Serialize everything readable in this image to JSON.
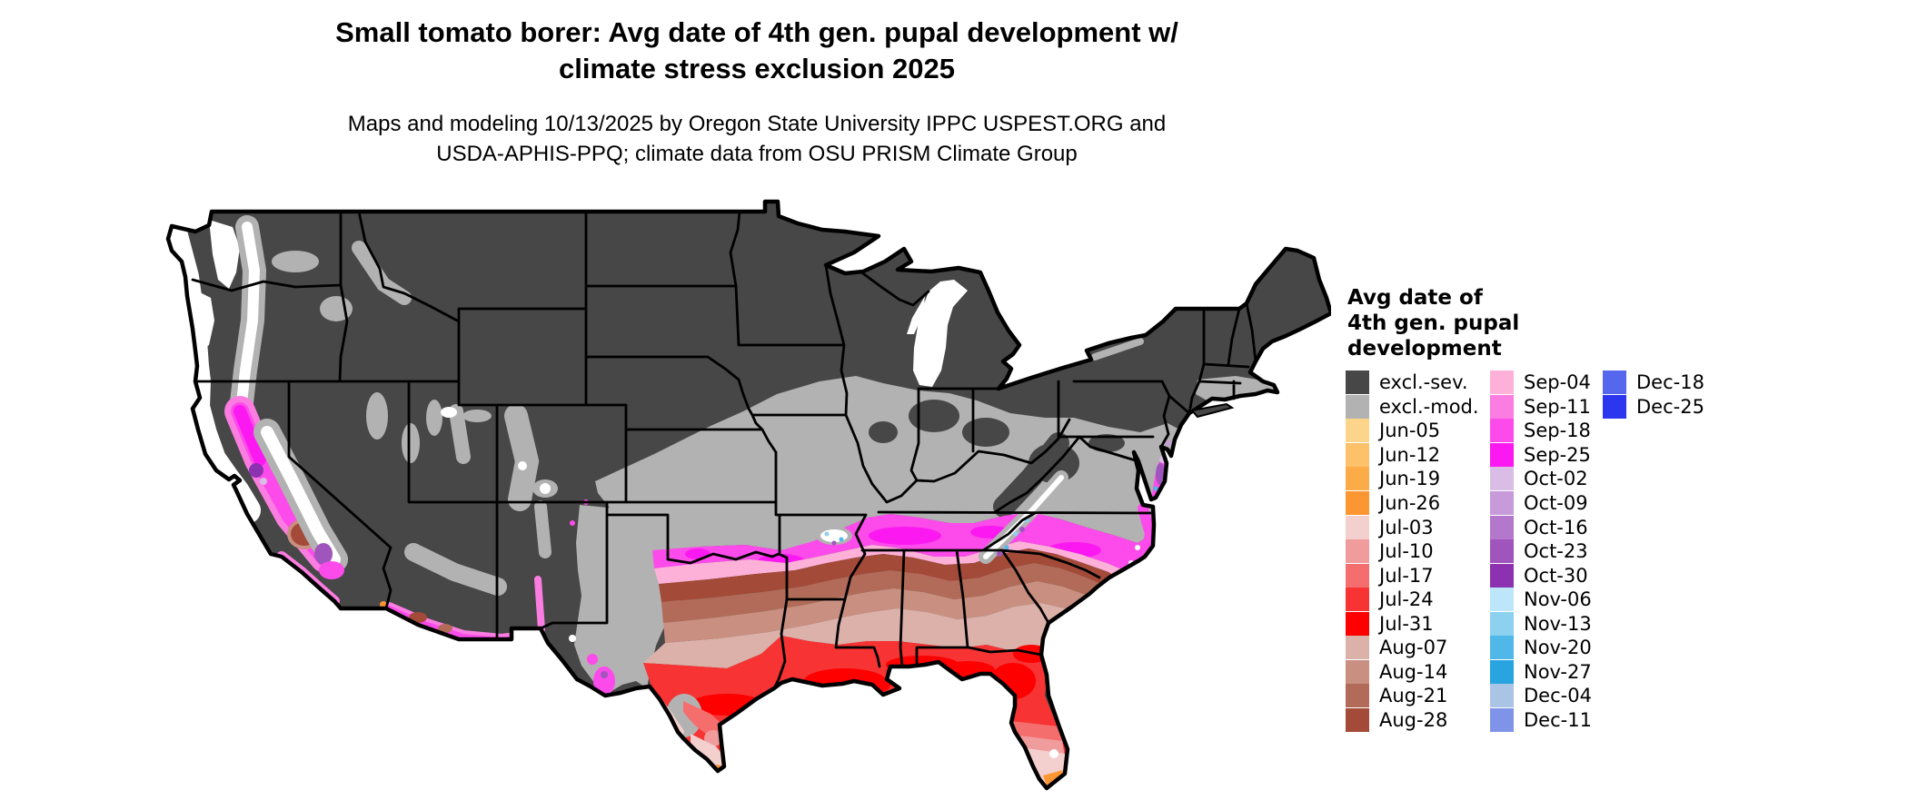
{
  "title": {
    "line1": "Small tomato borer: Avg date of 4th gen. pupal development w/",
    "line2": "climate stress exclusion 2025"
  },
  "subtitle": {
    "line1": "Maps and modeling 10/13/2025 by Oregon State University IPPC USPEST.ORG and",
    "line2": "USDA-APHIS-PPQ; climate data from OSU PRISM Climate Group"
  },
  "legend": {
    "title_lines": [
      "Avg date of",
      "4th gen. pupal",
      "development"
    ],
    "columns": [
      [
        {
          "label": "excl.-sev.",
          "color": "#474747"
        },
        {
          "label": "excl.-mod.",
          "color": "#b2b2b2"
        },
        {
          "label": "Jun-05",
          "color": "#fdd58a"
        },
        {
          "label": "Jun-12",
          "color": "#fdc169"
        },
        {
          "label": "Jun-19",
          "color": "#fcab49"
        },
        {
          "label": "Jun-26",
          "color": "#fb9633"
        },
        {
          "label": "Jul-03",
          "color": "#f3cfcd"
        },
        {
          "label": "Jul-10",
          "color": "#f09c9c"
        },
        {
          "label": "Jul-17",
          "color": "#f56e6e"
        },
        {
          "label": "Jul-24",
          "color": "#f73333"
        },
        {
          "label": "Jul-31",
          "color": "#fe0000"
        },
        {
          "label": "Aug-07",
          "color": "#dcb1aa"
        },
        {
          "label": "Aug-14",
          "color": "#c98f80"
        },
        {
          "label": "Aug-21",
          "color": "#b26b58"
        },
        {
          "label": "Aug-28",
          "color": "#a34a38"
        }
      ],
      [
        {
          "label": "Sep-04",
          "color": "#fdb1d9"
        },
        {
          "label": "Sep-11",
          "color": "#fc7de1"
        },
        {
          "label": "Sep-18",
          "color": "#fc4bea"
        },
        {
          "label": "Sep-25",
          "color": "#fc19f1"
        },
        {
          "label": "Oct-02",
          "color": "#dabde6"
        },
        {
          "label": "Oct-09",
          "color": "#c79ad9"
        },
        {
          "label": "Oct-16",
          "color": "#b377cb"
        },
        {
          "label": "Oct-23",
          "color": "#a055bd"
        },
        {
          "label": "Oct-30",
          "color": "#8c32b0"
        },
        {
          "label": "Nov-06",
          "color": "#bde6fb"
        },
        {
          "label": "Nov-13",
          "color": "#8dd1f1"
        },
        {
          "label": "Nov-20",
          "color": "#50b8e8"
        },
        {
          "label": "Nov-27",
          "color": "#28a5e0"
        },
        {
          "label": "Dec-04",
          "color": "#a9c4e4"
        },
        {
          "label": "Dec-11",
          "color": "#7f94e8"
        }
      ],
      [
        {
          "label": "Dec-18",
          "color": "#5567ec"
        },
        {
          "label": "Dec-25",
          "color": "#2c36ee"
        }
      ]
    ]
  },
  "colors": {
    "background": "#ffffff",
    "text": "#000000",
    "map_border": "#000000"
  }
}
